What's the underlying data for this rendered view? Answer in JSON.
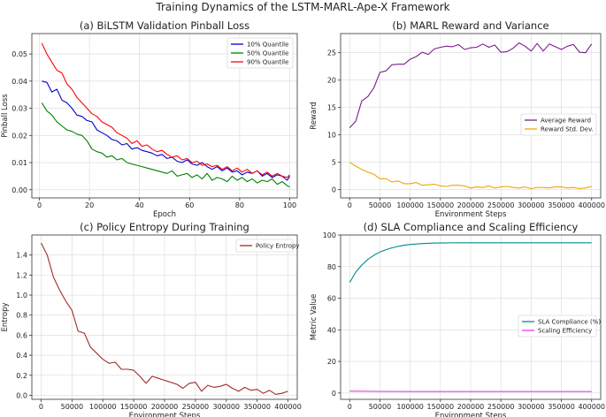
{
  "suptitle": "Training Dynamics of the LSTM-MARL-Ape-X Framework",
  "chart_data": [
    {
      "id": "a",
      "type": "line",
      "title": "(a) BiLSTM Validation Pinball Loss",
      "xlabel": "Epoch",
      "ylabel": "Pinball Loss",
      "xlim": [
        -3,
        103
      ],
      "ylim": [
        -0.003,
        0.0575
      ],
      "xticks": [
        0,
        20,
        40,
        60,
        80,
        100
      ],
      "yticks": [
        0.0,
        0.01,
        0.02,
        0.03,
        0.04,
        0.05
      ],
      "ytick_labels": [
        "0.00",
        "0.01",
        "0.02",
        "0.03",
        "0.04",
        "0.05"
      ],
      "grid": true,
      "legend_position": "top-right",
      "series": [
        {
          "name": "10% Quantile",
          "color": "#0000cc",
          "x": [
            1,
            3,
            5,
            7,
            9,
            11,
            13,
            15,
            17,
            19,
            21,
            23,
            25,
            27,
            29,
            31,
            33,
            35,
            37,
            39,
            41,
            43,
            45,
            47,
            49,
            51,
            53,
            55,
            57,
            59,
            61,
            63,
            65,
            67,
            69,
            71,
            73,
            75,
            77,
            79,
            81,
            83,
            85,
            87,
            89,
            91,
            93,
            95,
            97,
            99,
            100
          ],
          "y": [
            0.04,
            0.0395,
            0.036,
            0.037,
            0.033,
            0.032,
            0.03,
            0.0275,
            0.027,
            0.0255,
            0.025,
            0.022,
            0.021,
            0.02,
            0.0185,
            0.018,
            0.0165,
            0.017,
            0.015,
            0.0155,
            0.0145,
            0.014,
            0.0135,
            0.0125,
            0.013,
            0.0115,
            0.012,
            0.0105,
            0.01,
            0.011,
            0.0095,
            0.009,
            0.01,
            0.0085,
            0.0075,
            0.0085,
            0.007,
            0.008,
            0.0065,
            0.007,
            0.0055,
            0.0065,
            0.006,
            0.007,
            0.005,
            0.006,
            0.0045,
            0.0055,
            0.005,
            0.0035,
            0.005
          ]
        },
        {
          "name": "50% Quantile",
          "color": "#008000",
          "x": [
            1,
            3,
            5,
            7,
            9,
            11,
            13,
            15,
            17,
            19,
            21,
            23,
            25,
            27,
            29,
            31,
            33,
            35,
            37,
            39,
            41,
            43,
            45,
            47,
            49,
            51,
            53,
            55,
            57,
            59,
            61,
            63,
            65,
            67,
            69,
            71,
            73,
            75,
            77,
            79,
            81,
            83,
            85,
            87,
            89,
            91,
            93,
            95,
            97,
            99,
            100
          ],
          "y": [
            0.032,
            0.029,
            0.0275,
            0.025,
            0.0235,
            0.022,
            0.0215,
            0.0205,
            0.02,
            0.018,
            0.015,
            0.014,
            0.0135,
            0.012,
            0.0125,
            0.011,
            0.0115,
            0.01,
            0.0095,
            0.009,
            0.0085,
            0.008,
            0.0075,
            0.007,
            0.0065,
            0.006,
            0.007,
            0.005,
            0.0055,
            0.006,
            0.0045,
            0.0055,
            0.004,
            0.006,
            0.0035,
            0.0045,
            0.004,
            0.003,
            0.005,
            0.0035,
            0.0045,
            0.003,
            0.004,
            0.0025,
            0.0035,
            0.003,
            0.004,
            0.002,
            0.003,
            0.0015,
            0.001
          ]
        },
        {
          "name": "90% Quantile",
          "color": "#ff0000",
          "x": [
            1,
            3,
            5,
            7,
            9,
            11,
            13,
            15,
            17,
            19,
            21,
            23,
            25,
            27,
            29,
            31,
            33,
            35,
            37,
            39,
            41,
            43,
            45,
            47,
            49,
            51,
            53,
            55,
            57,
            59,
            61,
            63,
            65,
            67,
            69,
            71,
            73,
            75,
            77,
            79,
            81,
            83,
            85,
            87,
            89,
            91,
            93,
            95,
            97,
            99,
            100
          ],
          "y": [
            0.054,
            0.05,
            0.047,
            0.044,
            0.043,
            0.039,
            0.037,
            0.034,
            0.032,
            0.03,
            0.028,
            0.027,
            0.025,
            0.024,
            0.023,
            0.021,
            0.02,
            0.019,
            0.017,
            0.018,
            0.016,
            0.0165,
            0.015,
            0.014,
            0.0145,
            0.013,
            0.012,
            0.0125,
            0.011,
            0.0115,
            0.01,
            0.0105,
            0.009,
            0.0095,
            0.0085,
            0.009,
            0.0075,
            0.0085,
            0.007,
            0.008,
            0.0065,
            0.0075,
            0.006,
            0.007,
            0.0055,
            0.0065,
            0.005,
            0.006,
            0.005,
            0.0045,
            0.0055
          ]
        }
      ]
    },
    {
      "id": "b",
      "type": "line",
      "title": "(b) MARL Reward and Variance",
      "xlabel": "Environment Steps",
      "ylabel": "Reward",
      "xlim": [
        -15000,
        415000
      ],
      "ylim": [
        -1.5,
        28.5
      ],
      "xticks": [
        0,
        50000,
        100000,
        150000,
        200000,
        250000,
        300000,
        350000,
        400000
      ],
      "yticks": [
        0,
        5,
        10,
        15,
        20,
        25
      ],
      "ytick_labels": [
        "0",
        "5",
        "10",
        "15",
        "20",
        "25"
      ],
      "grid": true,
      "legend_position": "center-right",
      "series": [
        {
          "name": "Average Reward",
          "color": "#7b1c8c",
          "x": [
            0,
            10000,
            20000,
            30000,
            40000,
            50000,
            60000,
            70000,
            80000,
            90000,
            100000,
            110000,
            120000,
            130000,
            140000,
            150000,
            160000,
            170000,
            180000,
            190000,
            200000,
            210000,
            220000,
            230000,
            240000,
            250000,
            260000,
            270000,
            280000,
            290000,
            300000,
            310000,
            320000,
            330000,
            340000,
            350000,
            360000,
            370000,
            380000,
            390000,
            400000
          ],
          "y": [
            11.3,
            12.5,
            16.2,
            17.0,
            18.6,
            21.4,
            21.7,
            22.8,
            22.9,
            22.9,
            23.8,
            24.3,
            25.1,
            24.7,
            25.7,
            26.0,
            26.2,
            26.1,
            26.5,
            25.6,
            25.9,
            26.0,
            26.6,
            26.0,
            26.4,
            25.1,
            25.2,
            25.8,
            26.8,
            26.2,
            25.3,
            26.7,
            25.3,
            26.6,
            26.1,
            25.6,
            26.2,
            26.5,
            25.1,
            25.0,
            26.6
          ]
        },
        {
          "name": "Reward Std. Dev.",
          "color": "#f0a500",
          "x": [
            0,
            10000,
            20000,
            30000,
            40000,
            50000,
            60000,
            70000,
            80000,
            90000,
            100000,
            110000,
            120000,
            130000,
            140000,
            150000,
            160000,
            170000,
            180000,
            190000,
            200000,
            210000,
            220000,
            230000,
            240000,
            250000,
            260000,
            270000,
            280000,
            290000,
            300000,
            310000,
            320000,
            330000,
            340000,
            350000,
            360000,
            370000,
            380000,
            390000,
            400000
          ],
          "y": [
            5.0,
            4.3,
            3.7,
            3.2,
            2.8,
            2.0,
            2.0,
            1.4,
            1.6,
            1.1,
            1.1,
            1.3,
            0.8,
            0.9,
            1.0,
            0.7,
            0.6,
            0.8,
            0.8,
            0.7,
            0.3,
            0.5,
            0.4,
            0.7,
            0.3,
            0.5,
            0.6,
            0.4,
            0.3,
            0.5,
            0.2,
            0.4,
            0.4,
            0.3,
            0.5,
            0.5,
            0.3,
            0.4,
            0.2,
            0.3,
            0.6
          ]
        }
      ]
    },
    {
      "id": "c",
      "type": "line",
      "title": "(c) Policy Entropy During Training",
      "xlabel": "Environment Steps",
      "ylabel": "Entropy",
      "xlim": [
        -15000,
        415000
      ],
      "ylim": [
        -0.04,
        1.6
      ],
      "xticks": [
        0,
        50000,
        100000,
        150000,
        200000,
        250000,
        300000,
        350000,
        400000
      ],
      "yticks": [
        0.0,
        0.2,
        0.4,
        0.6,
        0.8,
        1.0,
        1.2,
        1.4
      ],
      "ytick_labels": [
        "0.0",
        "0.2",
        "0.4",
        "0.6",
        "0.8",
        "1.0",
        "1.2",
        "1.4"
      ],
      "grid": true,
      "legend_position": "top-right",
      "series": [
        {
          "name": "Policy Entropy",
          "color": "#a52a2a",
          "x": [
            0,
            10000,
            20000,
            30000,
            40000,
            50000,
            60000,
            70000,
            80000,
            90000,
            100000,
            110000,
            120000,
            130000,
            140000,
            150000,
            160000,
            170000,
            180000,
            190000,
            200000,
            210000,
            220000,
            230000,
            240000,
            250000,
            260000,
            270000,
            280000,
            290000,
            300000,
            310000,
            320000,
            330000,
            340000,
            350000,
            360000,
            370000,
            380000,
            390000,
            400000
          ],
          "y": [
            1.52,
            1.4,
            1.18,
            1.05,
            0.94,
            0.85,
            0.64,
            0.62,
            0.48,
            0.42,
            0.36,
            0.32,
            0.33,
            0.26,
            0.26,
            0.25,
            0.19,
            0.12,
            0.19,
            0.17,
            0.15,
            0.13,
            0.11,
            0.07,
            0.12,
            0.13,
            0.04,
            0.1,
            0.08,
            0.09,
            0.11,
            0.07,
            0.04,
            0.08,
            0.05,
            0.06,
            0.02,
            0.05,
            0.01,
            0.02,
            0.04
          ]
        }
      ]
    },
    {
      "id": "d",
      "type": "line",
      "title": "(d) SLA Compliance and Scaling Efficiency",
      "xlabel": "Environment Steps",
      "ylabel": "Metric Value",
      "xlim": [
        -15000,
        415000
      ],
      "ylim": [
        -4,
        100
      ],
      "xticks": [
        0,
        50000,
        100000,
        150000,
        200000,
        250000,
        300000,
        350000,
        400000
      ],
      "yticks": [
        0,
        20,
        40,
        60,
        80,
        100
      ],
      "ytick_labels": [
        "0",
        "20",
        "40",
        "60",
        "80",
        "100"
      ],
      "grid": true,
      "legend_position": "center-right",
      "series": [
        {
          "name": "SLA Compliance (%)",
          "color": "#008b8b",
          "x": [
            0,
            10000,
            20000,
            30000,
            40000,
            50000,
            60000,
            70000,
            80000,
            90000,
            100000,
            120000,
            140000,
            160000,
            180000,
            200000,
            250000,
            300000,
            350000,
            400000
          ],
          "y": [
            70.0,
            76.5,
            81.0,
            84.5,
            87.2,
            89.2,
            90.7,
            91.9,
            92.8,
            93.5,
            94.0,
            94.6,
            94.9,
            95.0,
            95.1,
            95.1,
            95.1,
            95.1,
            95.1,
            95.1
          ]
        },
        {
          "name": "Scaling Efficiency",
          "color": "#e040e0",
          "x": [
            0,
            50000,
            100000,
            150000,
            200000,
            250000,
            300000,
            350000,
            400000
          ],
          "y": [
            1.2,
            1.0,
            0.9,
            0.9,
            0.9,
            0.9,
            0.9,
            0.9,
            0.9
          ]
        }
      ]
    }
  ]
}
